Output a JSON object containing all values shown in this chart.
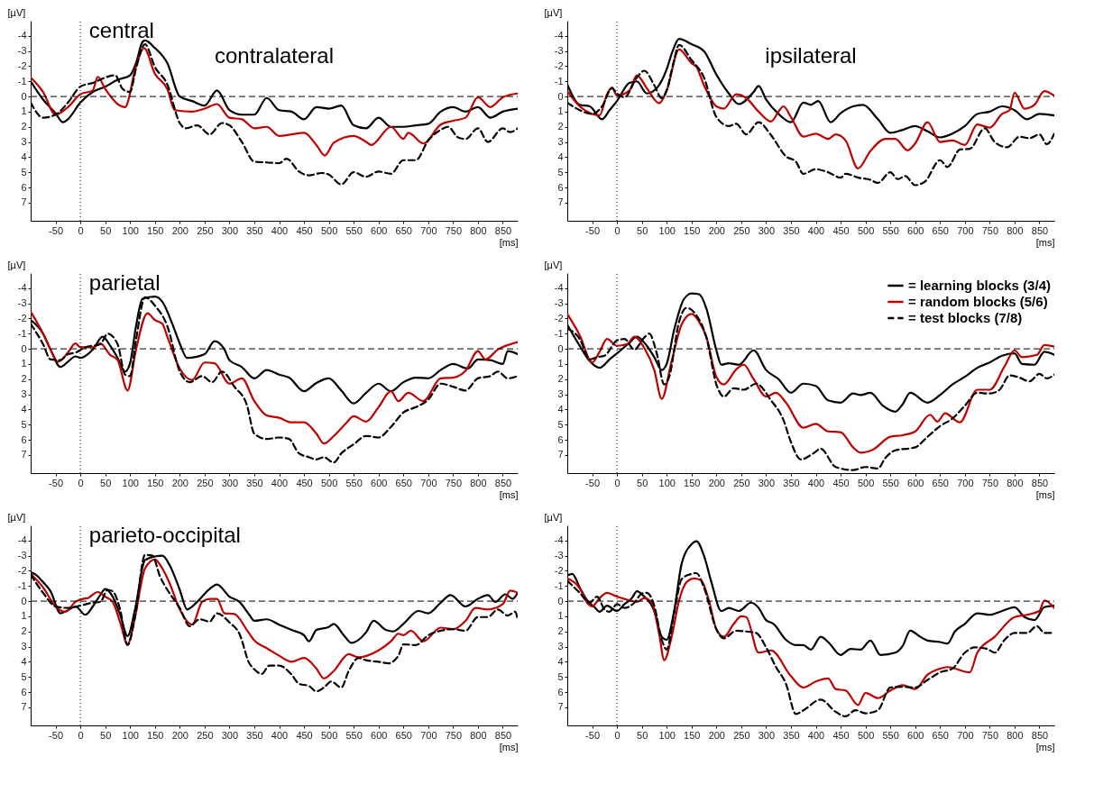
{
  "chart_data": [
    {
      "type": "line",
      "title": "central",
      "annotations": [
        "contralateral"
      ],
      "xlabel": "[ms]",
      "ylabel": "[µV]",
      "xlim": [
        -100,
        880
      ],
      "ylim": [
        8.2,
        -5
      ],
      "xticks": [
        -50,
        0,
        50,
        100,
        150,
        200,
        250,
        300,
        350,
        400,
        450,
        500,
        550,
        600,
        650,
        700,
        750,
        800,
        850
      ],
      "yticks": [
        -4,
        -3,
        -2,
        -1,
        0,
        1,
        2,
        3,
        4,
        5,
        6,
        7
      ],
      "ref_lines": [
        {
          "axis": "y",
          "value": 0,
          "line_style": "dashed"
        },
        {
          "axis": "x",
          "value": 0,
          "line_style": "dotted"
        }
      ],
      "series": [
        {
          "color": "#000000",
          "line_style": "solid",
          "x": [
            -100,
            -75,
            -50,
            -35,
            -25,
            0,
            25,
            50,
            75,
            100,
            112,
            125,
            130,
            150,
            175,
            200,
            225,
            250,
            275,
            300,
            325,
            350,
            375,
            400,
            425,
            450,
            475,
            500,
            525,
            550,
            575,
            600,
            625,
            650,
            675,
            700,
            725,
            750,
            775,
            800,
            825,
            850,
            880
          ],
          "values": [
            -1.0,
            0.2,
            1.1,
            1.7,
            1.5,
            0.4,
            -0.3,
            -0.65,
            -1.1,
            -1.4,
            -2.2,
            -3.6,
            -3.7,
            -3.2,
            -2.2,
            0.0,
            0.3,
            0.6,
            -0.4,
            0.9,
            1.2,
            1.2,
            0.1,
            0.9,
            1.0,
            1.5,
            0.7,
            0.8,
            0.6,
            1.9,
            2.1,
            1.4,
            2.0,
            2.0,
            1.9,
            1.8,
            1.0,
            0.7,
            1.0,
            0.7,
            1.4,
            1.0,
            0.8
          ]
        },
        {
          "color": "#c00000",
          "line_style": "solid",
          "x": [
            -100,
            -75,
            -50,
            -25,
            0,
            25,
            35,
            50,
            75,
            90,
            112,
            128,
            150,
            175,
            190,
            225,
            250,
            275,
            300,
            325,
            350,
            375,
            400,
            425,
            450,
            475,
            492,
            510,
            550,
            575,
            585,
            625,
            650,
            660,
            690,
            725,
            750,
            775,
            800,
            825,
            850,
            880
          ],
          "values": [
            -1.25,
            -0.3,
            1.2,
            0.7,
            -0.15,
            -0.4,
            -1.3,
            -0.5,
            0.5,
            0.7,
            -2.0,
            -3.2,
            -1.5,
            -0.5,
            0.9,
            1.0,
            0.8,
            0.5,
            1.4,
            1.5,
            2.1,
            2.0,
            2.6,
            2.5,
            2.4,
            3.2,
            3.9,
            3.05,
            2.6,
            3.0,
            3.2,
            2.0,
            2.8,
            2.4,
            3.1,
            1.85,
            1.6,
            1.4,
            0.05,
            0.7,
            0.05,
            -0.2
          ]
        },
        {
          "color": "#000000",
          "line_style": "dashed",
          "x": [
            -100,
            -75,
            -50,
            -25,
            0,
            25,
            50,
            70,
            85,
            100,
            112,
            130,
            150,
            175,
            200,
            212,
            235,
            260,
            285,
            300,
            325,
            350,
            375,
            400,
            415,
            440,
            460,
            485,
            500,
            525,
            550,
            575,
            600,
            625,
            650,
            675,
            700,
            725,
            740,
            760,
            775,
            800,
            820,
            850,
            865,
            880
          ],
          "values": [
            0.4,
            1.4,
            1.2,
            0.4,
            -0.65,
            -0.9,
            -1.25,
            -1.4,
            -0.5,
            -0.3,
            -1.85,
            -3.45,
            -1.95,
            -0.8,
            1.75,
            2.1,
            1.9,
            2.5,
            1.75,
            1.9,
            3.0,
            4.3,
            4.35,
            4.4,
            4.1,
            4.95,
            5.2,
            5.05,
            5.15,
            5.8,
            5.0,
            5.3,
            4.95,
            5.1,
            4.2,
            4.2,
            2.9,
            2.2,
            2.0,
            2.7,
            2.8,
            2.1,
            3.0,
            2.1,
            2.35,
            2.1
          ]
        }
      ]
    },
    {
      "type": "line",
      "annotations": [
        "ipsilateral"
      ],
      "xlabel": "[ms]",
      "ylabel": "[µV]",
      "xlim": [
        -100,
        880
      ],
      "ylim": [
        8.2,
        -5
      ],
      "xticks": [
        -50,
        0,
        50,
        100,
        150,
        200,
        250,
        300,
        350,
        400,
        450,
        500,
        550,
        600,
        650,
        700,
        750,
        800,
        850
      ],
      "yticks": [
        -4,
        -3,
        -2,
        -1,
        0,
        1,
        2,
        3,
        4,
        5,
        6,
        7
      ],
      "ref_lines": [
        {
          "axis": "y",
          "value": 0,
          "line_style": "dashed"
        },
        {
          "axis": "x",
          "value": 0,
          "line_style": "dotted"
        }
      ],
      "series": [
        {
          "color": "#000000",
          "line_style": "solid",
          "x": [
            -100,
            -75,
            -55,
            -30,
            -15,
            0,
            25,
            40,
            60,
            80,
            100,
            112,
            125,
            150,
            175,
            200,
            225,
            245,
            275,
            285,
            300,
            325,
            350,
            375,
            390,
            405,
            430,
            450,
            475,
            495,
            525,
            550,
            575,
            600,
            625,
            650,
            675,
            700,
            725,
            750,
            775,
            800,
            825,
            850,
            880
          ],
          "values": [
            -0.8,
            0.55,
            0.65,
            1.5,
            0.9,
            0.3,
            -0.9,
            -1.0,
            -0.2,
            -0.55,
            -1.8,
            -3.0,
            -3.8,
            -3.45,
            -3.0,
            -1.45,
            -0.2,
            0.5,
            -0.3,
            -0.7,
            0.2,
            1.15,
            1.7,
            0.4,
            0.55,
            0.3,
            1.7,
            1.1,
            0.65,
            0.55,
            1.5,
            2.4,
            2.2,
            1.95,
            2.3,
            2.7,
            2.45,
            1.95,
            1.15,
            1.0,
            0.65,
            0.9,
            1.5,
            1.15,
            1.25
          ]
        },
        {
          "color": "#c00000",
          "line_style": "solid",
          "x": [
            -100,
            -75,
            -50,
            -35,
            -20,
            -10,
            0,
            25,
            40,
            60,
            85,
            100,
            125,
            150,
            160,
            175,
            200,
            215,
            240,
            260,
            285,
            310,
            325,
            335,
            350,
            375,
            400,
            425,
            440,
            460,
            485,
            510,
            540,
            560,
            585,
            600,
            625,
            650,
            675,
            700,
            725,
            750,
            775,
            790,
            800,
            820,
            840,
            860,
            880
          ],
          "values": [
            -0.35,
            0.65,
            1.15,
            1.25,
            -0.15,
            -0.6,
            -0.05,
            -0.4,
            -1.4,
            -0.55,
            0.45,
            -0.4,
            -3.1,
            -2.2,
            -1.95,
            -0.75,
            0.65,
            0.8,
            -0.15,
            0.1,
            1.0,
            1.65,
            1.0,
            0.65,
            1.35,
            2.65,
            2.45,
            2.8,
            2.5,
            2.9,
            4.75,
            3.6,
            2.8,
            2.8,
            3.55,
            3.1,
            1.7,
            3.0,
            2.9,
            3.2,
            1.85,
            2.05,
            1.15,
            0.9,
            -0.25,
            0.8,
            0.55,
            -0.35,
            -0.05
          ]
        },
        {
          "color": "#000000",
          "line_style": "dashed",
          "x": [
            -100,
            -75,
            -50,
            -30,
            -10,
            0,
            15,
            40,
            55,
            75,
            90,
            100,
            112,
            125,
            150,
            175,
            200,
            225,
            240,
            260,
            285,
            310,
            340,
            360,
            375,
            400,
            425,
            450,
            460,
            485,
            510,
            525,
            550,
            565,
            580,
            600,
            620,
            650,
            665,
            690,
            710,
            740,
            760,
            785,
            810,
            830,
            850,
            865,
            880
          ],
          "values": [
            0.4,
            0.9,
            1.15,
            0.65,
            -0.55,
            -0.2,
            0.05,
            -1.25,
            -1.7,
            -0.75,
            0.1,
            -0.4,
            -2.0,
            -3.4,
            -2.4,
            -1.25,
            1.35,
            1.95,
            1.8,
            2.5,
            1.7,
            2.55,
            3.95,
            4.3,
            5.1,
            4.8,
            5.0,
            5.35,
            5.1,
            5.35,
            5.5,
            5.7,
            5.0,
            5.45,
            5.25,
            5.85,
            5.6,
            4.2,
            4.65,
            3.5,
            3.45,
            2.1,
            3.0,
            3.35,
            2.65,
            2.75,
            2.5,
            3.15,
            2.45
          ]
        }
      ]
    },
    {
      "type": "line",
      "title": "parietal",
      "xlabel": "[ms]",
      "ylabel": "[µV]",
      "xlim": [
        -100,
        880
      ],
      "ylim": [
        8.2,
        -5
      ],
      "xticks": [
        -50,
        0,
        50,
        100,
        150,
        200,
        250,
        300,
        350,
        400,
        450,
        500,
        550,
        600,
        650,
        700,
        750,
        800,
        850
      ],
      "yticks": [
        -4,
        -3,
        -2,
        -1,
        0,
        1,
        2,
        3,
        4,
        5,
        6,
        7
      ],
      "ref_lines": [
        {
          "axis": "y",
          "value": 0,
          "line_style": "dashed"
        },
        {
          "axis": "x",
          "value": 0,
          "line_style": "dotted"
        }
      ],
      "series": [
        {
          "color": "#000000",
          "line_style": "solid",
          "x": [
            -100,
            -75,
            -60,
            -40,
            -25,
            -10,
            0,
            25,
            45,
            60,
            75,
            90,
            100,
            112,
            125,
            150,
            165,
            185,
            200,
            215,
            250,
            270,
            290,
            300,
            325,
            350,
            375,
            400,
            420,
            450,
            475,
            500,
            525,
            550,
            575,
            600,
            625,
            650,
            675,
            700,
            725,
            750,
            780,
            800,
            825,
            850,
            860,
            880
          ],
          "values": [
            -1.9,
            -1.0,
            0.05,
            1.2,
            0.85,
            0.5,
            0.6,
            0.05,
            -0.8,
            -0.2,
            0.6,
            1.5,
            0.95,
            -1.5,
            -3.3,
            -3.45,
            -3.1,
            -1.65,
            -0.35,
            0.6,
            0.35,
            -0.5,
            0.05,
            0.75,
            1.2,
            1.95,
            1.4,
            1.7,
            1.9,
            2.8,
            2.25,
            1.95,
            2.75,
            3.6,
            2.9,
            2.3,
            2.8,
            2.2,
            1.9,
            1.95,
            1.4,
            1.0,
            1.3,
            0.7,
            0.75,
            1.0,
            0.15,
            0.35
          ]
        },
        {
          "color": "#c00000",
          "line_style": "solid",
          "x": [
            -100,
            -75,
            -60,
            -45,
            -25,
            -10,
            0,
            25,
            40,
            60,
            75,
            95,
            112,
            135,
            150,
            165,
            175,
            200,
            225,
            250,
            270,
            300,
            325,
            350,
            375,
            400,
            425,
            450,
            475,
            490,
            510,
            535,
            550,
            575,
            600,
            625,
            640,
            660,
            690,
            725,
            750,
            775,
            800,
            815,
            840,
            880
          ],
          "values": [
            -2.45,
            -1.0,
            0.05,
            0.85,
            0.25,
            -0.35,
            -0.1,
            -0.1,
            -0.35,
            0.4,
            0.75,
            2.75,
            0.05,
            -2.35,
            -1.9,
            -1.65,
            -0.8,
            1.3,
            2.05,
            0.9,
            0.95,
            2.3,
            1.95,
            3.45,
            4.4,
            4.55,
            4.85,
            4.85,
            5.6,
            6.25,
            5.75,
            4.9,
            4.45,
            4.8,
            3.85,
            2.8,
            3.45,
            2.9,
            3.45,
            1.95,
            1.9,
            1.45,
            0.15,
            0.7,
            0.05,
            -0.45
          ]
        },
        {
          "color": "#000000",
          "line_style": "dashed",
          "x": [
            -100,
            -75,
            -60,
            -40,
            -25,
            -10,
            10,
            40,
            55,
            75,
            90,
            100,
            112,
            130,
            150,
            175,
            200,
            220,
            245,
            265,
            285,
            310,
            335,
            350,
            375,
            400,
            420,
            440,
            460,
            475,
            490,
            510,
            525,
            550,
            575,
            600,
            625,
            650,
            675,
            700,
            725,
            750,
            775,
            800,
            825,
            840,
            860,
            880
          ],
          "values": [
            -1.65,
            -0.3,
            0.7,
            0.75,
            0.35,
            0.25,
            -0.1,
            -0.3,
            -1.0,
            -0.3,
            1.7,
            1.8,
            -0.6,
            -3.4,
            -2.85,
            -1.5,
            1.5,
            2.2,
            1.8,
            2.2,
            1.5,
            2.5,
            3.7,
            5.6,
            5.95,
            5.85,
            5.95,
            6.9,
            7.15,
            7.3,
            7.15,
            7.5,
            6.9,
            6.3,
            5.75,
            5.85,
            5.15,
            4.2,
            3.85,
            3.35,
            2.3,
            2.5,
            2.75,
            1.95,
            1.8,
            1.5,
            1.95,
            1.8
          ]
        }
      ]
    },
    {
      "type": "line",
      "xlabel": "[ms]",
      "ylabel": "[µV]",
      "legend": "top right",
      "xlim": [
        -100,
        880
      ],
      "ylim": [
        8.2,
        -5
      ],
      "xticks": [
        -50,
        0,
        50,
        100,
        150,
        200,
        250,
        300,
        350,
        400,
        450,
        500,
        550,
        600,
        650,
        700,
        750,
        800,
        850
      ],
      "yticks": [
        -4,
        -3,
        -2,
        -1,
        0,
        1,
        2,
        3,
        4,
        5,
        6,
        7
      ],
      "ref_lines": [
        {
          "axis": "y",
          "value": 0,
          "line_style": "dashed"
        },
        {
          "axis": "x",
          "value": 0,
          "line_style": "dotted"
        }
      ],
      "series": [
        {
          "name": "= learning blocks (3/4)",
          "color": "#000000",
          "line_style": "solid",
          "x": [
            -100,
            -75,
            -55,
            -35,
            -15,
            0,
            25,
            40,
            60,
            75,
            90,
            100,
            115,
            135,
            150,
            165,
            180,
            200,
            210,
            225,
            245,
            275,
            300,
            325,
            350,
            375,
            400,
            425,
            450,
            475,
            490,
            510,
            535,
            560,
            575,
            590,
            625,
            650,
            675,
            700,
            725,
            750,
            775,
            800,
            815,
            840,
            860,
            880
          ],
          "values": [
            -1.6,
            -0.2,
            0.8,
            1.25,
            0.7,
            0.3,
            -0.4,
            -0.8,
            -0.2,
            0.55,
            1.4,
            1.0,
            -1.25,
            -3.3,
            -3.65,
            -3.6,
            -2.65,
            0.1,
            1.05,
            0.95,
            1.05,
            0.1,
            1.4,
            2.0,
            2.9,
            2.3,
            2.45,
            3.4,
            3.55,
            2.95,
            3.05,
            2.9,
            3.75,
            4.15,
            3.65,
            2.9,
            3.55,
            3.05,
            2.35,
            1.85,
            1.25,
            0.9,
            0.45,
            0.3,
            1.0,
            1.05,
            0.2,
            0.4
          ]
        },
        {
          "name": "= random blocks (5/6)",
          "color": "#c00000",
          "line_style": "solid",
          "x": [
            -100,
            -75,
            -50,
            -35,
            -20,
            0,
            20,
            35,
            55,
            75,
            90,
            110,
            130,
            150,
            165,
            180,
            200,
            215,
            240,
            255,
            275,
            300,
            320,
            340,
            375,
            400,
            425,
            450,
            475,
            490,
            515,
            550,
            575,
            600,
            630,
            645,
            660,
            690,
            725,
            750,
            780,
            800,
            815,
            845,
            860,
            880
          ],
          "values": [
            -2.3,
            -0.9,
            0.9,
            0.2,
            -0.65,
            -0.2,
            -0.3,
            -0.8,
            -0.05,
            1.4,
            3.3,
            0.8,
            -1.6,
            -2.3,
            -1.8,
            -0.75,
            1.85,
            2.35,
            1.35,
            1.05,
            2.0,
            3.15,
            2.9,
            3.55,
            5.2,
            4.95,
            5.45,
            5.5,
            6.5,
            6.85,
            6.65,
            5.8,
            5.7,
            5.45,
            4.35,
            4.8,
            4.25,
            4.85,
            2.7,
            2.7,
            1.15,
            0.1,
            0.55,
            0.4,
            -0.25,
            -0.15
          ]
        },
        {
          "name": "= test blocks (7/8)",
          "color": "#000000",
          "line_style": "dashed",
          "x": [
            -100,
            -75,
            -55,
            -40,
            -25,
            0,
            15,
            35,
            55,
            65,
            80,
            95,
            105,
            125,
            140,
            160,
            180,
            200,
            215,
            235,
            255,
            280,
            310,
            335,
            350,
            370,
            395,
            410,
            440,
            475,
            500,
            525,
            540,
            560,
            600,
            625,
            650,
            675,
            700,
            725,
            750,
            770,
            790,
            810,
            830,
            850,
            865,
            880
          ],
          "values": [
            -1.35,
            -0.65,
            0.7,
            0.55,
            0.45,
            -0.55,
            -0.65,
            0.05,
            -0.75,
            -1.0,
            0.3,
            2.35,
            1.85,
            -1.8,
            -2.7,
            -2.2,
            -0.75,
            2.35,
            3.15,
            2.6,
            2.7,
            2.3,
            3.4,
            4.7,
            6.15,
            7.3,
            6.9,
            6.6,
            7.8,
            8.0,
            7.8,
            7.9,
            7.2,
            6.7,
            6.5,
            5.8,
            5.1,
            4.6,
            3.75,
            2.9,
            2.95,
            2.7,
            1.75,
            1.9,
            2.15,
            1.65,
            1.95,
            1.7
          ]
        }
      ]
    },
    {
      "type": "line",
      "title": "parieto-occipital",
      "xlabel": "[ms]",
      "ylabel": "[µV]",
      "xlim": [
        -100,
        880
      ],
      "ylim": [
        8.2,
        -5
      ],
      "xticks": [
        -50,
        0,
        50,
        100,
        150,
        200,
        250,
        300,
        350,
        400,
        450,
        500,
        550,
        600,
        650,
        700,
        750,
        800,
        850
      ],
      "yticks": [
        -4,
        -3,
        -2,
        -1,
        0,
        1,
        2,
        3,
        4,
        5,
        6,
        7
      ],
      "ref_lines": [
        {
          "axis": "y",
          "value": 0,
          "line_style": "dashed"
        },
        {
          "axis": "x",
          "value": 0,
          "line_style": "dotted"
        }
      ],
      "series": [
        {
          "color": "#000000",
          "line_style": "solid",
          "x": [
            -100,
            -90,
            -75,
            -60,
            -40,
            -25,
            -10,
            10,
            25,
            40,
            50,
            65,
            80,
            95,
            110,
            130,
            150,
            165,
            180,
            200,
            215,
            235,
            260,
            275,
            300,
            320,
            340,
            350,
            375,
            400,
            425,
            450,
            460,
            475,
            500,
            510,
            530,
            545,
            575,
            590,
            615,
            630,
            650,
            680,
            700,
            725,
            745,
            775,
            800,
            820,
            835,
            855,
            870,
            880
          ],
          "values": [
            -1.9,
            -1.75,
            -1.25,
            -0.65,
            0.8,
            0.6,
            0.35,
            0.9,
            0.35,
            -0.4,
            -0.8,
            -0.3,
            0.9,
            2.3,
            0.55,
            -2.7,
            -2.95,
            -3.0,
            -2.35,
            -0.75,
            0.55,
            0.05,
            -0.8,
            -1.1,
            -0.3,
            0.05,
            0.9,
            1.3,
            1.2,
            1.55,
            1.9,
            2.25,
            2.65,
            1.9,
            1.7,
            1.5,
            2.25,
            2.75,
            2.05,
            1.3,
            1.9,
            2.0,
            1.5,
            0.65,
            0.8,
            0.1,
            -0.4,
            0.35,
            -0.15,
            -0.4,
            0.05,
            -0.45,
            -0.15,
            -0.55
          ]
        },
        {
          "color": "#c00000",
          "line_style": "solid",
          "x": [
            -100,
            -75,
            -50,
            -30,
            -10,
            5,
            15,
            35,
            50,
            65,
            80,
            95,
            110,
            130,
            150,
            165,
            180,
            200,
            225,
            245,
            260,
            275,
            290,
            310,
            335,
            350,
            375,
            400,
            425,
            450,
            475,
            490,
            510,
            540,
            560,
            600,
            625,
            640,
            650,
            665,
            690,
            725,
            750,
            775,
            795,
            820,
            850,
            865,
            880
          ],
          "values": [
            -1.8,
            -0.9,
            0.35,
            0.7,
            0.05,
            -0.15,
            -0.2,
            -0.6,
            -0.3,
            0.05,
            1.4,
            2.85,
            1.05,
            -2.15,
            -2.75,
            -2.15,
            -1.15,
            0.55,
            1.55,
            0.05,
            -0.15,
            -0.15,
            0.8,
            0.85,
            1.9,
            2.6,
            3.1,
            3.6,
            4.0,
            3.75,
            4.45,
            5.1,
            4.6,
            3.5,
            3.7,
            3.25,
            2.65,
            2.15,
            2.25,
            1.95,
            2.65,
            1.75,
            1.85,
            1.3,
            0.45,
            0.55,
            0.2,
            -0.7,
            -0.55
          ]
        },
        {
          "color": "#000000",
          "line_style": "dashed",
          "x": [
            -100,
            -75,
            -50,
            -25,
            0,
            25,
            40,
            55,
            65,
            80,
            95,
            110,
            130,
            145,
            160,
            175,
            200,
            220,
            240,
            260,
            275,
            300,
            320,
            340,
            350,
            365,
            380,
            400,
            425,
            440,
            460,
            475,
            490,
            505,
            525,
            540,
            560,
            575,
            600,
            620,
            640,
            650,
            675,
            700,
            725,
            750,
            775,
            800,
            820,
            840,
            860,
            875,
            880
          ],
          "values": [
            -1.75,
            -0.55,
            0.35,
            0.45,
            0.3,
            0.1,
            0.05,
            -0.75,
            -0.65,
            0.55,
            2.9,
            1.05,
            -3.05,
            -3.0,
            -1.65,
            -0.75,
            0.45,
            1.65,
            1.2,
            1.35,
            0.8,
            1.4,
            2.15,
            4.1,
            4.5,
            4.8,
            4.25,
            4.25,
            4.85,
            5.45,
            5.6,
            5.95,
            5.7,
            5.3,
            5.7,
            4.6,
            3.75,
            3.9,
            4.0,
            4.1,
            3.6,
            2.85,
            2.9,
            2.25,
            1.95,
            1.85,
            1.95,
            1.05,
            1.05,
            0.55,
            0.95,
            0.7,
            1.2
          ]
        }
      ]
    },
    {
      "type": "line",
      "xlabel": "[ms]",
      "ylabel": "[µV]",
      "xlim": [
        -100,
        880
      ],
      "ylim": [
        8.2,
        -5
      ],
      "xticks": [
        -50,
        0,
        50,
        100,
        150,
        200,
        250,
        300,
        350,
        400,
        450,
        500,
        550,
        600,
        650,
        700,
        750,
        800,
        850
      ],
      "yticks": [
        -4,
        -3,
        -2,
        -1,
        0,
        1,
        2,
        3,
        4,
        5,
        6,
        7
      ],
      "ref_lines": [
        {
          "axis": "y",
          "value": 0,
          "line_style": "dashed"
        },
        {
          "axis": "x",
          "value": 0,
          "line_style": "dotted"
        }
      ],
      "series": [
        {
          "color": "#000000",
          "line_style": "solid",
          "x": [
            -100,
            -90,
            -75,
            -60,
            -45,
            -35,
            -20,
            0,
            15,
            30,
            40,
            55,
            75,
            90,
            100,
            115,
            130,
            150,
            160,
            175,
            190,
            210,
            225,
            245,
            270,
            285,
            300,
            315,
            340,
            360,
            375,
            390,
            410,
            425,
            450,
            470,
            490,
            510,
            530,
            560,
            575,
            590,
            610,
            625,
            650,
            665,
            680,
            700,
            725,
            750,
            775,
            800,
            820,
            840,
            860,
            880
          ],
          "values": [
            -1.7,
            -1.8,
            -0.9,
            -0.05,
            0.4,
            0.7,
            0.3,
            0.65,
            0.2,
            -0.2,
            -0.65,
            -0.3,
            0.65,
            2.35,
            2.55,
            0.65,
            -2.45,
            -3.75,
            -3.95,
            -3.0,
            -1.25,
            0.65,
            0.45,
            0.65,
            0.1,
            0.45,
            1.25,
            1.5,
            2.55,
            2.9,
            2.9,
            3.2,
            2.35,
            2.7,
            3.55,
            3.15,
            3.2,
            2.6,
            3.55,
            3.4,
            2.95,
            1.95,
            2.35,
            2.6,
            2.7,
            2.8,
            2.0,
            1.5,
            0.8,
            0.9,
            0.65,
            0.4,
            1.05,
            1.25,
            0.4,
            0.3
          ]
        },
        {
          "color": "#c00000",
          "line_style": "solid",
          "x": [
            -100,
            -75,
            -60,
            -50,
            -35,
            -20,
            0,
            25,
            40,
            55,
            70,
            85,
            95,
            110,
            125,
            140,
            155,
            170,
            185,
            200,
            215,
            235,
            250,
            260,
            285,
            310,
            350,
            375,
            400,
            425,
            440,
            460,
            485,
            500,
            525,
            550,
            575,
            600,
            625,
            650,
            665,
            710,
            725,
            760,
            800,
            825,
            850,
            860,
            880
          ],
          "values": [
            -1.5,
            -0.85,
            0.1,
            0.35,
            -0.2,
            -0.55,
            -0.3,
            -0.05,
            0.05,
            -0.2,
            0.1,
            2.2,
            3.9,
            2.35,
            -0.05,
            -1.25,
            -1.5,
            -1.35,
            -0.05,
            1.85,
            2.35,
            1.5,
            1.0,
            1.05,
            3.4,
            3.25,
            4.95,
            5.7,
            5.3,
            5.1,
            5.8,
            5.9,
            6.85,
            6.05,
            6.4,
            5.9,
            5.55,
            5.8,
            4.85,
            4.45,
            4.35,
            4.7,
            3.4,
            2.35,
            1.05,
            0.9,
            0.65,
            -0.05,
            0.45
          ]
        },
        {
          "color": "#000000",
          "line_style": "dashed",
          "x": [
            -100,
            -75,
            -55,
            -40,
            -25,
            -15,
            0,
            15,
            35,
            50,
            60,
            75,
            90,
            100,
            115,
            130,
            150,
            160,
            175,
            200,
            215,
            240,
            260,
            280,
            300,
            320,
            340,
            360,
            375,
            410,
            440,
            460,
            480,
            500,
            525,
            550,
            575,
            600,
            625,
            650,
            675,
            700,
            720,
            745,
            760,
            780,
            800,
            825,
            845,
            860,
            880
          ],
          "values": [
            -1.35,
            -0.55,
            0.1,
            -0.3,
            0.55,
            0.7,
            0.2,
            0.45,
            0.1,
            -0.5,
            -0.55,
            0.3,
            2.55,
            3.2,
            0.8,
            -1.45,
            -1.8,
            -1.85,
            -0.9,
            1.85,
            2.45,
            1.95,
            2.0,
            2.1,
            3.05,
            4.35,
            5.45,
            7.45,
            7.2,
            6.5,
            7.3,
            7.6,
            7.2,
            7.4,
            7.2,
            5.7,
            5.65,
            5.7,
            5.2,
            4.7,
            4.45,
            3.4,
            3.05,
            3.15,
            3.4,
            2.55,
            2.1,
            2.1,
            1.65,
            2.1,
            2.1
          ]
        }
      ]
    }
  ]
}
